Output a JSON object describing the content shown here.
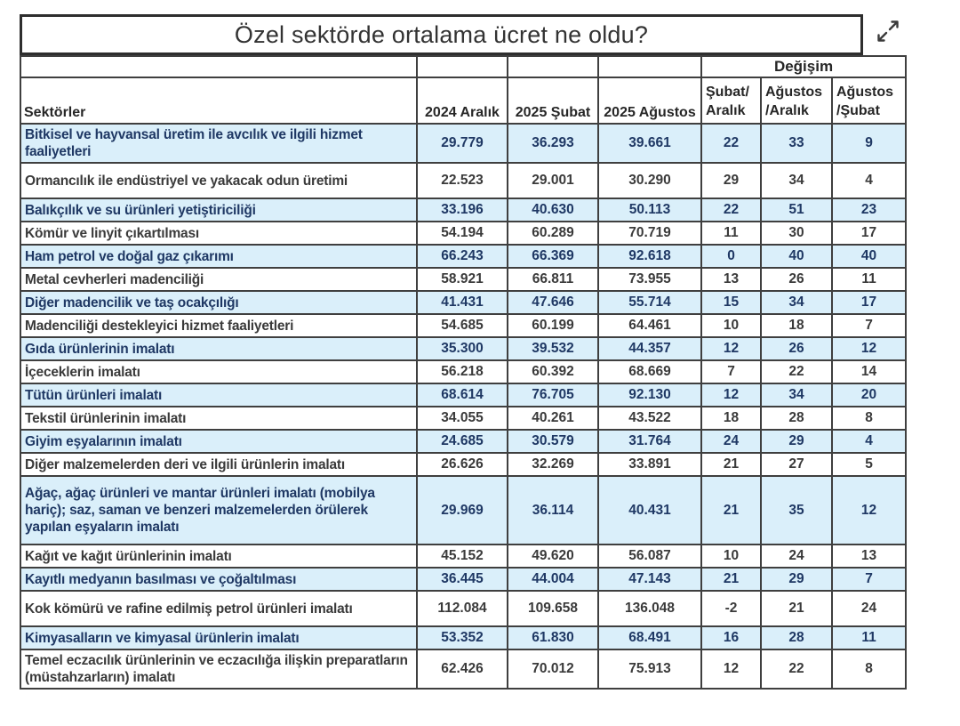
{
  "chart_data": {
    "type": "table",
    "title": "Özel sektörde ortalama ücret ne oldu?",
    "group_label": "Değişim",
    "columns": [
      "Sektörler",
      "2024 Aralık",
      "2025 Şubat",
      "2025 Ağustos",
      "Şubat/\nAralık",
      "Ağustos\n/Aralık",
      "Ağustos\n/Şubat"
    ],
    "rows": [
      {
        "sector": "Bitkisel ve hayvansal üretim ile avcılık ve ilgili hizmet faaliyetleri",
        "values": [
          "29.779",
          "36.293",
          "39.661",
          "22",
          "33",
          "9"
        ],
        "highlight": true,
        "tall": false
      },
      {
        "sector": "Ormancılık ile endüstriyel ve yakacak odun üretimi",
        "values": [
          "22.523",
          "29.001",
          "30.290",
          "29",
          "34",
          "4"
        ],
        "highlight": false,
        "tall": true
      },
      {
        "sector": "Balıkçılık ve su ürünleri yetiştiriciliği",
        "values": [
          "33.196",
          "40.630",
          "50.113",
          "22",
          "51",
          "23"
        ],
        "highlight": true,
        "tall": false
      },
      {
        "sector": "Kömür ve linyit çıkartılması",
        "values": [
          "54.194",
          "60.289",
          "70.719",
          "11",
          "30",
          "17"
        ],
        "highlight": false,
        "tall": false
      },
      {
        "sector": "Ham petrol ve doğal gaz çıkarımı",
        "values": [
          "66.243",
          "66.369",
          "92.618",
          "0",
          "40",
          "40"
        ],
        "highlight": true,
        "tall": false
      },
      {
        "sector": "Metal cevherleri madenciliği",
        "values": [
          "58.921",
          "66.811",
          "73.955",
          "13",
          "26",
          "11"
        ],
        "highlight": false,
        "tall": false
      },
      {
        "sector": "Diğer madencilik ve taş ocakçılığı",
        "values": [
          "41.431",
          "47.646",
          "55.714",
          "15",
          "34",
          "17"
        ],
        "highlight": true,
        "tall": false
      },
      {
        "sector": "Madenciliği destekleyici hizmet faaliyetleri",
        "values": [
          "54.685",
          "60.199",
          "64.461",
          "10",
          "18",
          "7"
        ],
        "highlight": false,
        "tall": false
      },
      {
        "sector": "Gıda ürünlerinin imalatı",
        "values": [
          "35.300",
          "39.532",
          "44.357",
          "12",
          "26",
          "12"
        ],
        "highlight": true,
        "tall": false
      },
      {
        "sector": "İçeceklerin imalatı",
        "values": [
          "56.218",
          "60.392",
          "68.669",
          "7",
          "22",
          "14"
        ],
        "highlight": false,
        "tall": false
      },
      {
        "sector": "Tütün ürünleri imalatı",
        "values": [
          "68.614",
          "76.705",
          "92.130",
          "12",
          "34",
          "20"
        ],
        "highlight": true,
        "tall": false
      },
      {
        "sector": "Tekstil ürünlerinin imalatı",
        "values": [
          "34.055",
          "40.261",
          "43.522",
          "18",
          "28",
          "8"
        ],
        "highlight": false,
        "tall": false
      },
      {
        "sector": "Giyim eşyalarının imalatı",
        "values": [
          "24.685",
          "30.579",
          "31.764",
          "24",
          "29",
          "4"
        ],
        "highlight": true,
        "tall": false
      },
      {
        "sector": "Diğer malzemelerden deri ve ilgili ürünlerin imalatı",
        "values": [
          "26.626",
          "32.269",
          "33.891",
          "21",
          "27",
          "5"
        ],
        "highlight": false,
        "tall": false
      },
      {
        "sector": "Ağaç, ağaç ürünleri ve mantar ürünleri imalatı (mobilya hariç); saz, saman ve benzeri malzemelerden örülerek yapılan eşyaların imalatı",
        "values": [
          "29.969",
          "36.114",
          "40.431",
          "21",
          "35",
          "12"
        ],
        "highlight": true,
        "tall": true
      },
      {
        "sector": "Kağıt ve kağıt ürünlerinin imalatı",
        "values": [
          "45.152",
          "49.620",
          "56.087",
          "10",
          "24",
          "13"
        ],
        "highlight": false,
        "tall": false
      },
      {
        "sector": "Kayıtlı medyanın basılması ve çoğaltılması",
        "values": [
          "36.445",
          "44.004",
          "47.143",
          "21",
          "29",
          "7"
        ],
        "highlight": true,
        "tall": false
      },
      {
        "sector": "Kok kömürü ve rafine edilmiş petrol ürünleri imalatı",
        "values": [
          "112.084",
          "109.658",
          "136.048",
          "-2",
          "21",
          "24"
        ],
        "highlight": false,
        "tall": true
      },
      {
        "sector": "Kimyasalların ve kimyasal ürünlerin imalatı",
        "values": [
          "53.352",
          "61.830",
          "68.491",
          "16",
          "28",
          "11"
        ],
        "highlight": true,
        "tall": false
      },
      {
        "sector": "Temel eczacılık ürünlerinin ve eczacılığa ilişkin preparatların (müstahzarların) imalatı",
        "values": [
          "62.426",
          "70.012",
          "75.913",
          "12",
          "22",
          "8"
        ],
        "highlight": false,
        "tall": false
      }
    ]
  },
  "icons": {
    "expand": "diagonal-expand-arrows"
  },
  "colors": {
    "hl-bg": "#daeffa",
    "hl-text": "#1f3864",
    "row-text": "#3a3a3a",
    "border": "#3f3f3f",
    "header-text": "#262626"
  }
}
